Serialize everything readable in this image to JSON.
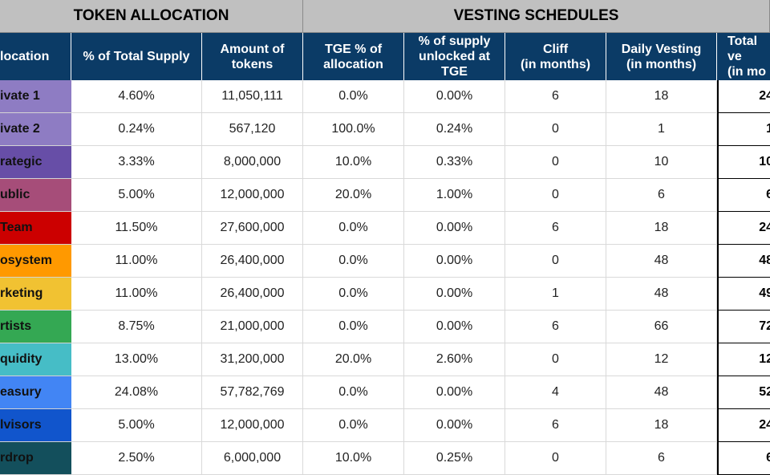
{
  "headers": {
    "token_allocation": "TOKEN ALLOCATION",
    "vesting_schedules": "VESTING SCHEDULES"
  },
  "columns": [
    "location",
    "% of Total Supply",
    "Amount of tokens",
    "TGE % of allocation",
    "% of supply unlocked at TGE",
    "Cliff\n(in months)",
    "Daily Vesting\n(in months)",
    "Total ve\n(in mo"
  ],
  "rows": [
    {
      "name": "ivate 1",
      "color": "#8e7cc3",
      "supply_pct": "4.60%",
      "amount": "11,050,111",
      "tge_pct": "0.0%",
      "unlocked": "0.00%",
      "cliff": "6",
      "daily": "18",
      "total": "24"
    },
    {
      "name": "ivate 2",
      "color": "#8e7cc3",
      "supply_pct": "0.24%",
      "amount": "567,120",
      "tge_pct": "100.0%",
      "unlocked": "0.24%",
      "cliff": "0",
      "daily": "1",
      "total": "1"
    },
    {
      "name": "rategic",
      "color": "#674ea7",
      "supply_pct": "3.33%",
      "amount": "8,000,000",
      "tge_pct": "10.0%",
      "unlocked": "0.33%",
      "cliff": "0",
      "daily": "10",
      "total": "10"
    },
    {
      "name": "ublic",
      "color": "#a64d79",
      "supply_pct": "5.00%",
      "amount": "12,000,000",
      "tge_pct": "20.0%",
      "unlocked": "1.00%",
      "cliff": "0",
      "daily": "6",
      "total": "6"
    },
    {
      "name": "Team",
      "color": "#cc0000",
      "supply_pct": "11.50%",
      "amount": "27,600,000",
      "tge_pct": "0.0%",
      "unlocked": "0.00%",
      "cliff": "6",
      "daily": "18",
      "total": "24"
    },
    {
      "name": "osystem",
      "color": "#ff9900",
      "supply_pct": "11.00%",
      "amount": "26,400,000",
      "tge_pct": "0.0%",
      "unlocked": "0.00%",
      "cliff": "0",
      "daily": "48",
      "total": "48"
    },
    {
      "name": "rketing",
      "color": "#f1c232",
      "supply_pct": "11.00%",
      "amount": "26,400,000",
      "tge_pct": "0.0%",
      "unlocked": "0.00%",
      "cliff": "1",
      "daily": "48",
      "total": "49"
    },
    {
      "name": "rtists",
      "color": "#34a853",
      "supply_pct": "8.75%",
      "amount": "21,000,000",
      "tge_pct": "0.0%",
      "unlocked": "0.00%",
      "cliff": "6",
      "daily": "66",
      "total": "72"
    },
    {
      "name": "quidity",
      "color": "#46bdc6",
      "supply_pct": "13.00%",
      "amount": "31,200,000",
      "tge_pct": "20.0%",
      "unlocked": "2.60%",
      "cliff": "0",
      "daily": "12",
      "total": "12"
    },
    {
      "name": "easury",
      "color": "#4285f4",
      "supply_pct": "24.08%",
      "amount": "57,782,769",
      "tge_pct": "0.0%",
      "unlocked": "0.00%",
      "cliff": "4",
      "daily": "48",
      "total": "52"
    },
    {
      "name": "lvisors",
      "color": "#1155cc",
      "supply_pct": "5.00%",
      "amount": "12,000,000",
      "tge_pct": "0.0%",
      "unlocked": "0.00%",
      "cliff": "6",
      "daily": "18",
      "total": "24"
    },
    {
      "name": "rdrop",
      "color": "#134f5c",
      "supply_pct": "2.50%",
      "amount": "6,000,000",
      "tge_pct": "10.0%",
      "unlocked": "0.25%",
      "cliff": "0",
      "daily": "6",
      "total": "6"
    }
  ]
}
